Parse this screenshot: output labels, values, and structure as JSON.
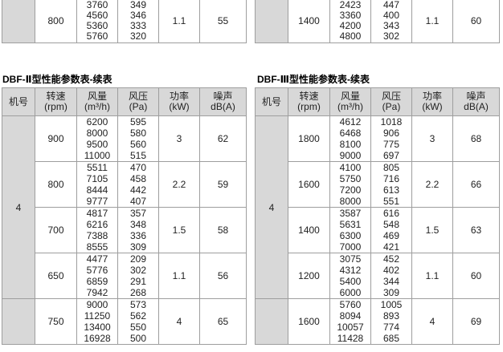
{
  "page": {
    "background": "#ffffff",
    "description_colors": {
      "header_bg": "#d8d8d8",
      "grid_border": "#9e9e9e",
      "outer_border": "#7f7f7f",
      "text": "#222222"
    }
  },
  "columns": {
    "machine": [
      "机号"
    ],
    "speed": [
      "转速",
      "(rpm)"
    ],
    "flow": [
      "风量",
      "(m³/h)"
    ],
    "pressure": [
      "风压",
      "(Pa)"
    ],
    "power": [
      "功率",
      "(kW)"
    ],
    "noise": [
      "噪声",
      "dB(A)"
    ]
  },
  "top_partial_tables": [
    {
      "machine_no": "",
      "groups": [
        {
          "speed": "800",
          "flows": [
            "3760",
            "4560",
            "5360",
            "5760"
          ],
          "pressures": [
            "349",
            "346",
            "333",
            "320"
          ],
          "power": "1.1",
          "noise": "55"
        }
      ]
    },
    {
      "machine_no": "",
      "groups": [
        {
          "speed": "1400",
          "flows": [
            "2423",
            "3360",
            "4200",
            "4800"
          ],
          "pressures": [
            "447",
            "400",
            "343",
            "302"
          ],
          "power": "1.1",
          "noise": "60"
        }
      ]
    }
  ],
  "tables": [
    {
      "title": "DBF-Ⅱ型性能参数表-续表",
      "machine_no": "4",
      "groups": [
        {
          "speed": "900",
          "flows": [
            "6200",
            "8000",
            "9500",
            "11000"
          ],
          "pressures": [
            "595",
            "580",
            "560",
            "515"
          ],
          "power": "3",
          "noise": "62"
        },
        {
          "speed": "800",
          "flows": [
            "5511",
            "7105",
            "8444",
            "9777"
          ],
          "pressures": [
            "470",
            "458",
            "442",
            "407"
          ],
          "power": "2.2",
          "noise": "59"
        },
        {
          "speed": "700",
          "flows": [
            "4817",
            "6216",
            "7388",
            "8555"
          ],
          "pressures": [
            "357",
            "348",
            "336",
            "309"
          ],
          "power": "1.5",
          "noise": "58"
        },
        {
          "speed": "650",
          "flows": [
            "4477",
            "5776",
            "6859",
            "7942"
          ],
          "pressures": [
            "209",
            "302",
            "291",
            "268"
          ],
          "power": "1.1",
          "noise": "56"
        },
        {
          "speed": "750",
          "flows": [
            "9000",
            "11250",
            "13400",
            "16928"
          ],
          "pressures": [
            "573",
            "562",
            "550",
            "500"
          ],
          "power": "4",
          "noise": "65"
        }
      ]
    },
    {
      "title": "DBF-Ⅲ型性能参数表-续表",
      "machine_no": "4",
      "groups": [
        {
          "speed": "1800",
          "flows": [
            "4612",
            "6468",
            "8100",
            "9000"
          ],
          "pressures": [
            "1018",
            "906",
            "775",
            "697"
          ],
          "power": "3",
          "noise": "68"
        },
        {
          "speed": "1600",
          "flows": [
            "4100",
            "5750",
            "7200",
            "8000"
          ],
          "pressures": [
            "805",
            "716",
            "613",
            "551"
          ],
          "power": "2.2",
          "noise": "66"
        },
        {
          "speed": "1400",
          "flows": [
            "3587",
            "5631",
            "6300",
            "7000"
          ],
          "pressures": [
            "616",
            "548",
            "469",
            "421"
          ],
          "power": "1.5",
          "noise": "63"
        },
        {
          "speed": "1200",
          "flows": [
            "3075",
            "4312",
            "5400",
            "6000"
          ],
          "pressures": [
            "452",
            "402",
            "344",
            "309"
          ],
          "power": "1.1",
          "noise": "60"
        },
        {
          "speed": "1600",
          "flows": [
            "5760",
            "8094",
            "10057",
            "11428"
          ],
          "pressures": [
            "1005",
            "893",
            "774",
            "685"
          ],
          "power": "4",
          "noise": "69"
        }
      ]
    }
  ]
}
